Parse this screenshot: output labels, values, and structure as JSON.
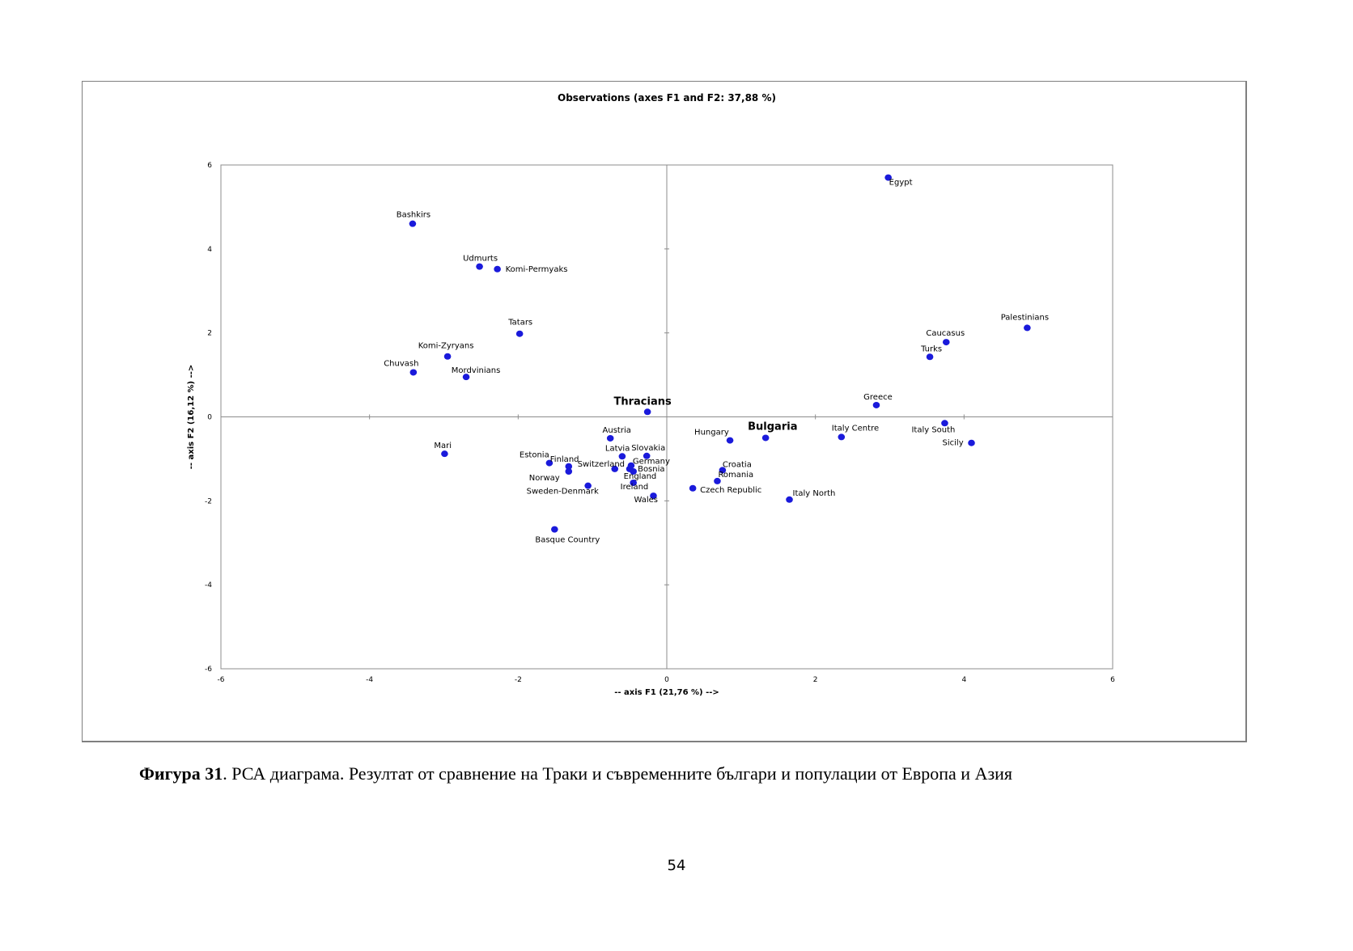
{
  "chart_data": {
    "type": "scatter",
    "title": "Observations (axes F1 and F2: 37,88 %)",
    "xlabel": "-- axis F1 (21,76 %) -->",
    "ylabel": "-- axis F2 (16,12 %) -->",
    "xlim": [
      -6,
      6
    ],
    "ylim": [
      -6,
      6
    ],
    "xticks": [
      "-6",
      "-4",
      "-2",
      "0",
      "2",
      "4",
      "6"
    ],
    "yticks": [
      "-6",
      "-4",
      "-2",
      "0",
      "2",
      "4",
      "6"
    ],
    "marker_color": "#1a1adb",
    "grid": false,
    "points": [
      {
        "label": "Egypt",
        "x": 2.98,
        "y": 5.7
      },
      {
        "label": "Bashkirs",
        "x": -3.42,
        "y": 4.6
      },
      {
        "label": "Udmurts",
        "x": -2.52,
        "y": 3.58
      },
      {
        "label": "Komi-Permyaks",
        "x": -2.28,
        "y": 3.52
      },
      {
        "label": "Tatars",
        "x": -1.98,
        "y": 1.98
      },
      {
        "label": "Komi-Zyryans",
        "x": -2.95,
        "y": 1.44
      },
      {
        "label": "Chuvash",
        "x": -3.41,
        "y": 1.06
      },
      {
        "label": "Mordvinians",
        "x": -2.7,
        "y": 0.95
      },
      {
        "label": "Palestinians",
        "x": 4.85,
        "y": 2.12
      },
      {
        "label": "Caucasus",
        "x": 3.76,
        "y": 1.78
      },
      {
        "label": "Turks",
        "x": 3.54,
        "y": 1.43
      },
      {
        "label": "Greece",
        "x": 2.82,
        "y": 0.28
      },
      {
        "label": "Thracians",
        "x": -0.26,
        "y": 0.12
      },
      {
        "label": "Bulgaria",
        "x": 1.33,
        "y": -0.5
      },
      {
        "label": "Italy Centre",
        "x": 2.35,
        "y": -0.48
      },
      {
        "label": "Italy South",
        "x": 3.74,
        "y": -0.15
      },
      {
        "label": "Sicily",
        "x": 4.1,
        "y": -0.62
      },
      {
        "label": "Hungary",
        "x": 0.85,
        "y": -0.56
      },
      {
        "label": "Austria",
        "x": -0.76,
        "y": -0.51
      },
      {
        "label": "Latvia",
        "x": -0.6,
        "y": -0.94
      },
      {
        "label": "Slovakia",
        "x": -0.27,
        "y": -0.93
      },
      {
        "label": "Switzerland",
        "x": -0.7,
        "y": -1.24
      },
      {
        "label": "Germany",
        "x": -0.48,
        "y": -1.16
      },
      {
        "label": "Bosnia",
        "x": -0.5,
        "y": -1.24
      },
      {
        "label": "England",
        "x": -0.45,
        "y": -1.3
      },
      {
        "label": "Ireland",
        "x": -0.45,
        "y": -1.57
      },
      {
        "label": "Wales",
        "x": -0.18,
        "y": -1.88
      },
      {
        "label": "Croatia",
        "x": 0.75,
        "y": -1.27
      },
      {
        "label": "Romania",
        "x": 0.68,
        "y": -1.53
      },
      {
        "label": "Czech Republic",
        "x": 0.35,
        "y": -1.7
      },
      {
        "label": "Italy North",
        "x": 1.65,
        "y": -1.97
      },
      {
        "label": "Mari",
        "x": -2.99,
        "y": -0.88
      },
      {
        "label": "Estonia",
        "x": -1.58,
        "y": -1.1
      },
      {
        "label": "Finland",
        "x": -1.32,
        "y": -1.18
      },
      {
        "label": "Norway",
        "x": -1.32,
        "y": -1.3
      },
      {
        "label": "Sweden-Denmark",
        "x": -1.06,
        "y": -1.64
      },
      {
        "label": "Basque Country",
        "x": -1.51,
        "y": -2.68
      }
    ]
  },
  "caption": {
    "label": "Фигура 31",
    "text": ". РСА диаграма. Резултат от сравнение на Траки и съвременните българи и популации от Европа и Азия"
  },
  "page_number": "54"
}
